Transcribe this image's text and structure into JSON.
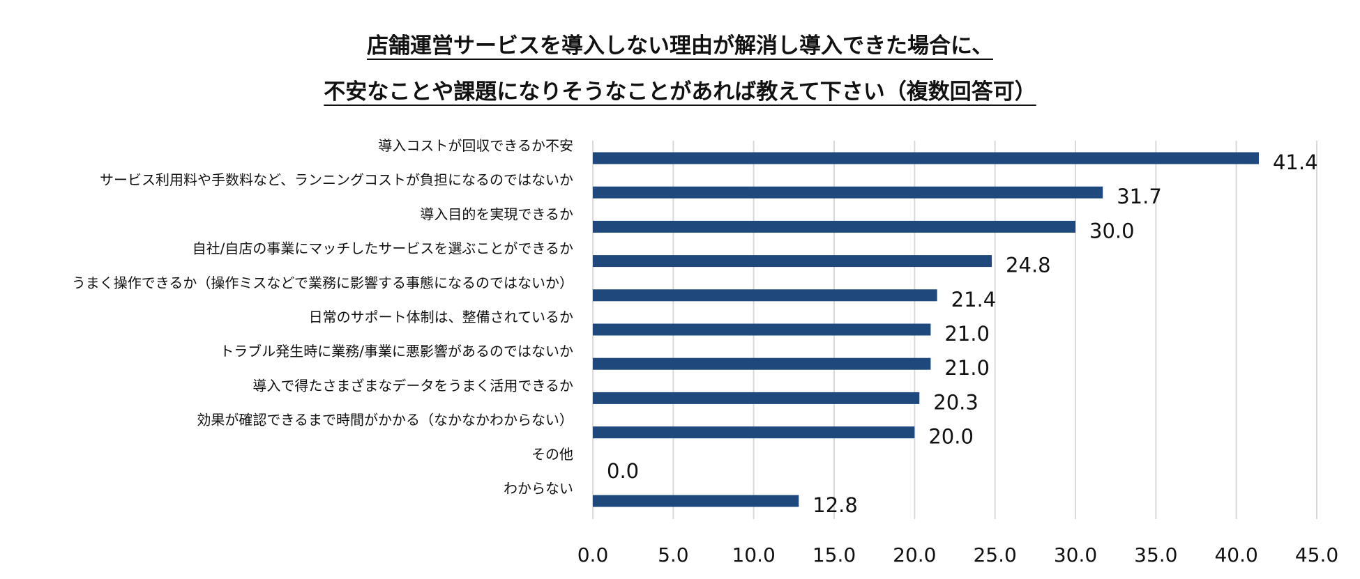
{
  "chart_data": {
    "type": "bar",
    "orientation": "horizontal",
    "title_lines": [
      "店舗運営サービスを導入しない理由が解消し導入できた場合に、",
      "不安なことや課題になりそうなことがあれば教えて下さい（複数回答可）"
    ],
    "categories": [
      "導入コストが回収できるか不安",
      "サービス利用料や手数料など、ランニングコストが負担になるのではないか",
      "導入目的を実現できるか",
      "自社/自店の事業にマッチしたサービスを選ぶことができるか",
      "うまく操作できるか（操作ミスなどで業務に影響する事態になるのではないか）",
      "日常のサポート体制は、整備されているか",
      "トラブル発生時に業務/事業に悪影響があるのではないか",
      "導入で得たさまざまなデータをうまく活用できるか",
      "効果が確認できるまで時間がかかる（なかなかわからない）",
      "その他",
      "わからない"
    ],
    "values": [
      41.4,
      31.7,
      30.0,
      24.8,
      21.4,
      21.0,
      21.0,
      20.3,
      20.0,
      0.0,
      12.8
    ],
    "value_labels": [
      "41.4",
      "31.7",
      "30.0",
      "24.8",
      "21.4",
      "21.0",
      "21.0",
      "20.3",
      "20.0",
      "0.0",
      "12.8"
    ],
    "xlim": [
      0,
      45
    ],
    "ticks": [
      0,
      5,
      10,
      15,
      20,
      25,
      30,
      35,
      40,
      45
    ],
    "tick_labels": [
      "0.0",
      "5.0",
      "10.0",
      "15.0",
      "20.0",
      "25.0",
      "30.0",
      "35.0",
      "40.0",
      "45.0"
    ],
    "grid": true,
    "legend": "none",
    "bar_color": "#1F497D",
    "grid_color": "#D9D9D9"
  }
}
